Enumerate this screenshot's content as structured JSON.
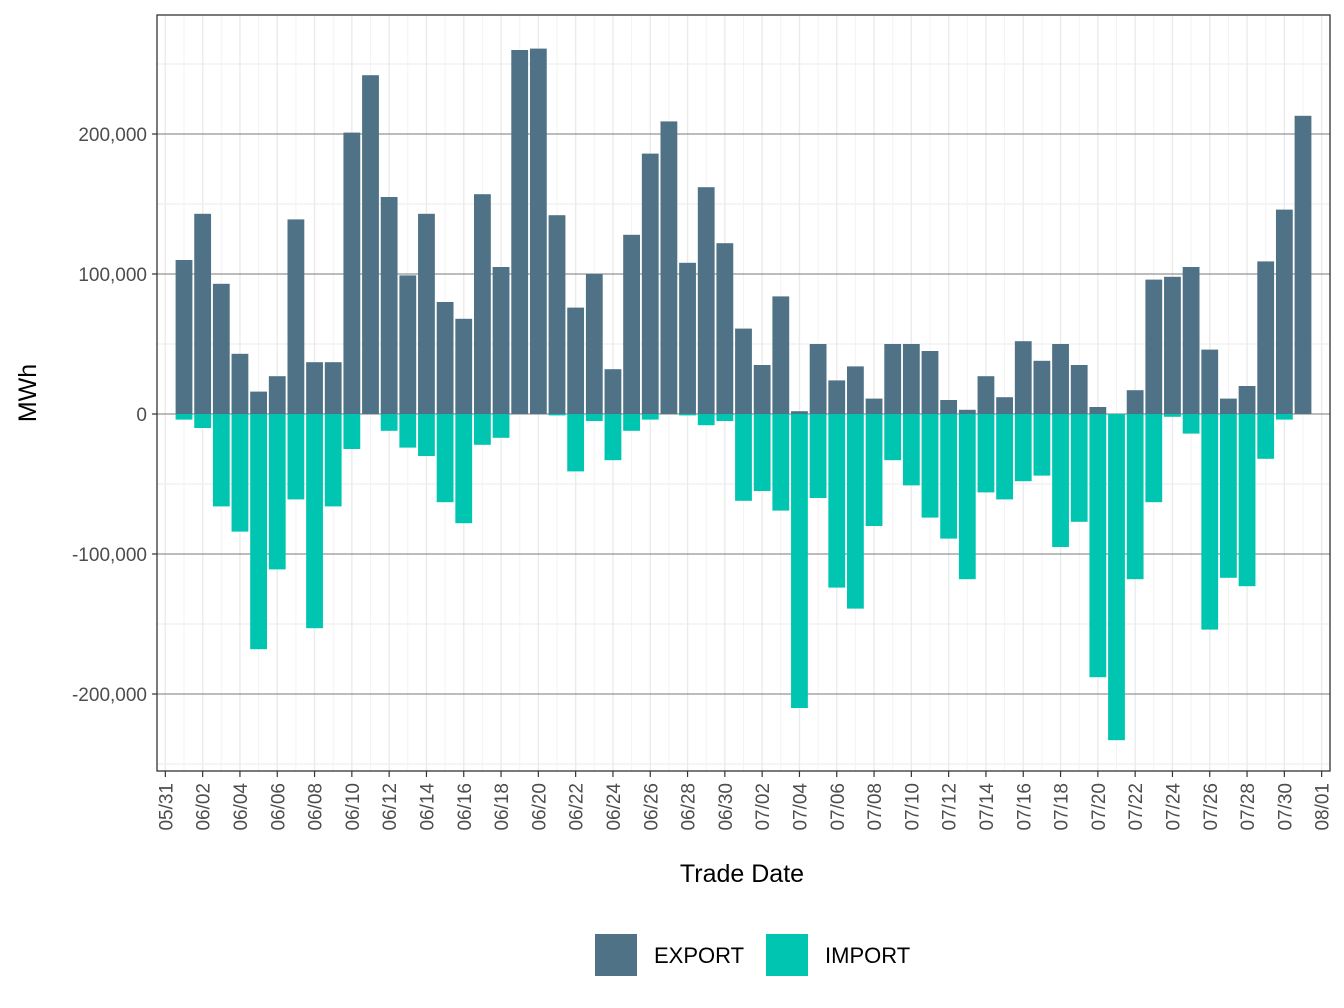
{
  "chart_data": {
    "type": "bar",
    "xlabel": "Trade Date",
    "ylabel": "MWh",
    "ylim": [
      -255000,
      285000
    ],
    "yticks": [
      -200000,
      -100000,
      0,
      100000,
      200000
    ],
    "ytick_labels": [
      "-200,000",
      "-100,000",
      "0",
      "100,000",
      "200,000"
    ],
    "xtick_labels": [
      "05/31",
      "06/02",
      "06/04",
      "06/06",
      "06/08",
      "06/10",
      "06/12",
      "06/14",
      "06/16",
      "06/18",
      "06/20",
      "06/22",
      "06/24",
      "06/26",
      "06/28",
      "06/30",
      "07/02",
      "07/04",
      "07/06",
      "07/08",
      "07/10",
      "07/12",
      "07/14",
      "07/16",
      "07/18",
      "07/20",
      "07/22",
      "07/24",
      "07/26",
      "07/28",
      "07/30",
      "08/01"
    ],
    "grid": true,
    "legend_position": "bottom",
    "categories": [
      "06/01",
      "06/02",
      "06/03",
      "06/04",
      "06/05",
      "06/06",
      "06/07",
      "06/08",
      "06/09",
      "06/10",
      "06/11",
      "06/12",
      "06/13",
      "06/14",
      "06/15",
      "06/16",
      "06/17",
      "06/18",
      "06/19",
      "06/20",
      "06/21",
      "06/22",
      "06/23",
      "06/24",
      "06/25",
      "06/26",
      "06/27",
      "06/28",
      "06/29",
      "06/30",
      "07/01",
      "07/02",
      "07/03",
      "07/04",
      "07/05",
      "07/06",
      "07/07",
      "07/08",
      "07/09",
      "07/10",
      "07/11",
      "07/12",
      "07/13",
      "07/14",
      "07/15",
      "07/16",
      "07/17",
      "07/18",
      "07/19",
      "07/20",
      "07/21",
      "07/22",
      "07/23",
      "07/24",
      "07/25",
      "07/26",
      "07/27",
      "07/28",
      "07/29",
      "07/30",
      "07/31"
    ],
    "series": [
      {
        "name": "EXPORT",
        "color": "#4f7286",
        "values": [
          110000,
          143000,
          93000,
          43000,
          16000,
          27000,
          139000,
          37000,
          37000,
          201000,
          242000,
          155000,
          99000,
          143000,
          80000,
          68000,
          157000,
          105000,
          260000,
          261000,
          142000,
          76000,
          100000,
          32000,
          128000,
          186000,
          209000,
          108000,
          162000,
          122000,
          61000,
          35000,
          84000,
          2000,
          50000,
          24000,
          34000,
          11000,
          50000,
          50000,
          45000,
          10000,
          3000,
          27000,
          12000,
          52000,
          38000,
          50000,
          35000,
          5000,
          0,
          17000,
          96000,
          98000,
          105000,
          46000,
          11000,
          20000,
          109000,
          146000,
          213000
        ]
      },
      {
        "name": "IMPORT",
        "color": "#00c5b0",
        "values": [
          -4000,
          -10000,
          -66000,
          -84000,
          -168000,
          -111000,
          -61000,
          -153000,
          -66000,
          -25000,
          0,
          -12000,
          -24000,
          -30000,
          -63000,
          -78000,
          -22000,
          -17000,
          0,
          0,
          -1000,
          -41000,
          -5000,
          -33000,
          -12000,
          -4000,
          0,
          -1000,
          -8000,
          -5000,
          -62000,
          -55000,
          -69000,
          -210000,
          -60000,
          -124000,
          -139000,
          -80000,
          -33000,
          -51000,
          -74000,
          -89000,
          -118000,
          -56000,
          -61000,
          -48000,
          -44000,
          -95000,
          -77000,
          -188000,
          -233000,
          -118000,
          -63000,
          -2000,
          -14000,
          -154000,
          -117000,
          -123000,
          -32000,
          -4000,
          0
        ]
      }
    ]
  }
}
